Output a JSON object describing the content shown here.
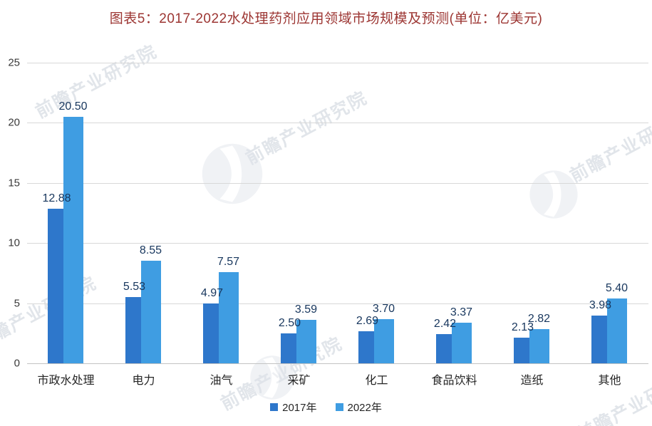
{
  "title": "图表5：2017-2022水处理药剂应用领域市场规模及预测(单位：亿美元)",
  "colors": {
    "title": "#9c3532",
    "series_2017": "#2e77cb",
    "series_2022": "#3f9de2",
    "data_label": "#17365d",
    "gridline": "#d8d8d8",
    "watermark": "#b0bac9"
  },
  "watermark": {
    "text": "前瞻产业研究院",
    "logo": "qianzhan-circle-logo"
  },
  "legend": {
    "items": [
      {
        "label": "2017年",
        "color": "#2e77cb"
      },
      {
        "label": "2022年",
        "color": "#3f9de2"
      }
    ]
  },
  "chart_data": {
    "type": "bar",
    "title": "图表5：2017-2022水处理药剂应用领域市场规模及预测(单位：亿美元)",
    "categories": [
      "市政水处理",
      "电力",
      "油气",
      "采矿",
      "化工",
      "食品饮料",
      "造纸",
      "其他"
    ],
    "series": [
      {
        "name": "2017年",
        "values": [
          12.88,
          5.53,
          4.97,
          2.5,
          2.69,
          2.42,
          2.13,
          3.98
        ]
      },
      {
        "name": "2022年",
        "values": [
          20.5,
          8.55,
          7.57,
          3.59,
          3.7,
          3.37,
          2.82,
          5.4
        ]
      }
    ],
    "xlabel": "",
    "ylabel": "",
    "unit": "亿美元",
    "ylim": [
      0,
      25
    ],
    "yticks": [
      0,
      5,
      10,
      15,
      20,
      25
    ],
    "grid": true,
    "data_labels_decimals": 2,
    "legend_position": "bottom"
  }
}
